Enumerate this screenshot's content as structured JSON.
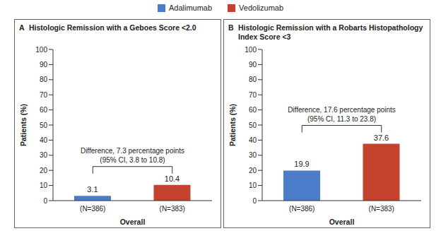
{
  "chart_data": [
    {
      "type": "bar",
      "title": "A Histologic Remission with a Geboes Score <2.0",
      "categories": [
        "(N=386)",
        "(N=383)"
      ],
      "series": [
        {
          "name": "Adalimumab",
          "color": "#4a7cc9",
          "values": [
            3.1,
            null
          ]
        },
        {
          "name": "Vedolizumab",
          "color": "#c4422e",
          "values": [
            null,
            10.4
          ]
        }
      ],
      "x_label": "Overall",
      "y_label": "Patients (%)",
      "ylim": [
        0,
        100
      ],
      "yticks": [
        0,
        10,
        20,
        30,
        40,
        50,
        60,
        70,
        80,
        90,
        100
      ],
      "data_labels": true,
      "legend": "top",
      "annotations": [
        "Difference, 7.3 percentage points",
        "(95% CI, 3.8 to 10.8)"
      ]
    },
    {
      "type": "bar",
      "title": "B Histologic Remission with a Robarts Histopathology Index Score <3",
      "categories": [
        "(N=386)",
        "(N=383)"
      ],
      "series": [
        {
          "name": "Adalimumab",
          "color": "#4a7cc9",
          "values": [
            19.9,
            null
          ]
        },
        {
          "name": "Vedolizumab",
          "color": "#c4422e",
          "values": [
            null,
            37.6
          ]
        }
      ],
      "x_label": "Overall",
      "y_label": "Patients (%)",
      "ylim": [
        0,
        100
      ],
      "yticks": [
        0,
        10,
        20,
        30,
        40,
        50,
        60,
        70,
        80,
        90,
        100
      ],
      "data_labels": true,
      "legend": "top",
      "annotations": [
        "Difference, 17.6 percentage points",
        "(95% CI, 11.3 to 23.8)"
      ]
    }
  ]
}
